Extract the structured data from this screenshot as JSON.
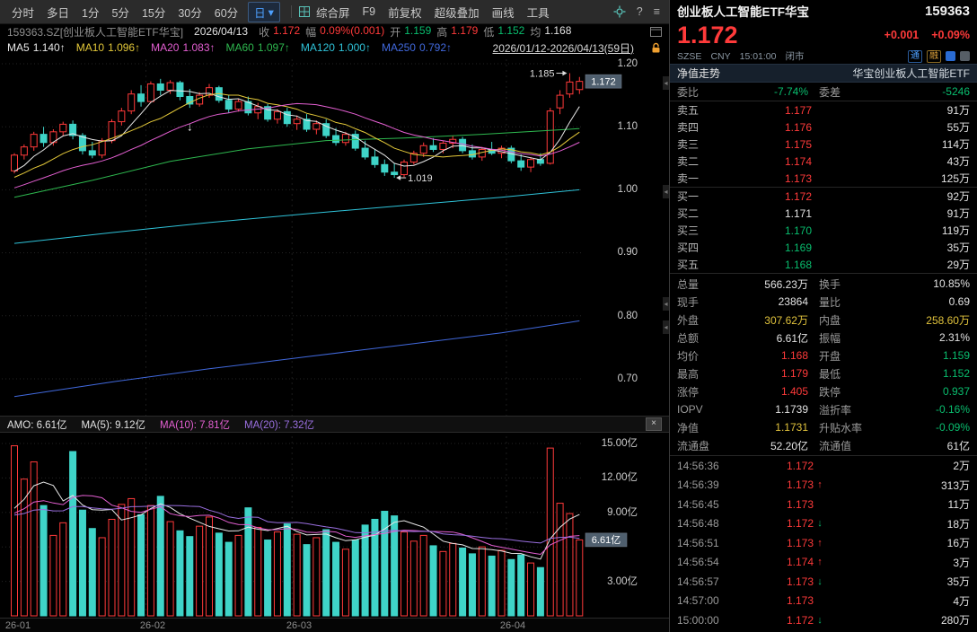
{
  "colors": {
    "up": "#ff3a3a",
    "down": "#09bd6e",
    "candle_down": "#3fd4c8",
    "yellow": "#e0c23c",
    "white": "#e2e2e2",
    "dim": "#9a9a9a",
    "magenta": "#e45fd2",
    "purple": "#9a6fe0",
    "badge_bg": "#4f5f6e",
    "accent_blue": "#4da0ff",
    "orange": "#f0a030"
  },
  "icons": {
    "close": "×",
    "caret": "▾",
    "help": "?",
    "burger": "≡",
    "collapse": "◂"
  },
  "toolbar": {
    "periods": [
      {
        "label": "分时"
      },
      {
        "label": "多日"
      },
      {
        "label": "1分"
      },
      {
        "label": "5分"
      },
      {
        "label": "15分"
      },
      {
        "label": "30分"
      },
      {
        "label": "60分"
      }
    ],
    "active_period": "日",
    "menus": [
      {
        "label": "综合屏"
      },
      {
        "label": "F9"
      },
      {
        "label": "前复权"
      },
      {
        "label": "超级叠加"
      },
      {
        "label": "画线"
      },
      {
        "label": "工具"
      }
    ]
  },
  "info_bar": {
    "code_name": "159363.SZ[创业板人工智能ETF华宝]",
    "date": "2026/04/13",
    "fields": [
      {
        "label": "收",
        "value": "1.172",
        "color": "up"
      },
      {
        "label": "幅",
        "value": "0.09%(0.001)",
        "color": "up"
      },
      {
        "label": "开",
        "value": "1.159",
        "color": "down"
      },
      {
        "label": "高",
        "value": "1.179",
        "color": "up"
      },
      {
        "label": "低",
        "value": "1.152",
        "color": "down"
      },
      {
        "label": "均",
        "value": "1.168",
        "color": "white"
      }
    ]
  },
  "ma_bar": {
    "items": [
      {
        "label": "MA5",
        "value": "1.140↑",
        "color": "#e8e8e8"
      },
      {
        "label": "MA10",
        "value": "1.096↑",
        "color": "#e3c839"
      },
      {
        "label": "MA20",
        "value": "1.083↑",
        "color": "#e45fd2"
      },
      {
        "label": "MA60",
        "value": "1.097↑",
        "color": "#2eb84f"
      },
      {
        "label": "MA120",
        "value": "1.000↑",
        "color": "#2fc3d9"
      },
      {
        "label": "MA250",
        "value": "0.792↑",
        "color": "#4169dd"
      }
    ],
    "range": "2026/01/12-2026/04/13(59日)"
  },
  "amo_bar": {
    "amo_label": "AMO: 6.61亿",
    "ma5_label": "MA(5): 9.12亿",
    "ma10_label": "MA(10): 7.81亿",
    "ma20_label": "MA(20): 7.32亿"
  },
  "chart_data": [
    {
      "type": "candlestick",
      "symbol": "159363.SZ",
      "period": "日K",
      "y_ticks": [
        "1.20",
        "1.10",
        "1.00",
        "0.90",
        "0.80",
        "0.70"
      ],
      "y_tick_values": [
        1.2,
        1.1,
        1.0,
        0.9,
        0.8,
        0.7
      ],
      "ylim": [
        0.645,
        1.213
      ],
      "x_labels": [
        {
          "label": "26-01",
          "day": 0
        },
        {
          "label": "26-02",
          "day": 14
        },
        {
          "label": "26-03",
          "day": 29
        },
        {
          "label": "26-04",
          "day": 51
        }
      ],
      "last_price": 1.172,
      "last_price_label": "1.172",
      "annotations": [
        {
          "text": "1.185",
          "day": 57,
          "price": 1.185,
          "side": "left"
        },
        {
          "text": "1.019",
          "day": 39,
          "price": 1.019,
          "side": "right"
        },
        {
          "text": "↓",
          "day": 18,
          "price": 1.094,
          "side": "marker"
        }
      ],
      "overlays": [
        {
          "name": "MA5",
          "period": 5,
          "color": "#e8e8e8"
        },
        {
          "name": "MA10",
          "period": 10,
          "color": "#e3c839"
        },
        {
          "name": "MA20",
          "period": 20,
          "color": "#e45fd2"
        }
      ],
      "trend_lines": [
        {
          "name": "MA60",
          "color": "#2eb84f",
          "points": [
            [
              0,
              0.988
            ],
            [
              8,
              1.015
            ],
            [
              16,
              1.045
            ],
            [
              24,
              1.065
            ],
            [
              32,
              1.078
            ],
            [
              40,
              1.082
            ],
            [
              48,
              1.088
            ],
            [
              58,
              1.097
            ]
          ]
        },
        {
          "name": "MA120",
          "color": "#2fc3d9",
          "points": [
            [
              0,
              0.915
            ],
            [
              10,
              0.932
            ],
            [
              20,
              0.948
            ],
            [
              30,
              0.962
            ],
            [
              40,
              0.975
            ],
            [
              50,
              0.988
            ],
            [
              58,
              1.0
            ]
          ]
        },
        {
          "name": "MA250",
          "color": "#4169dd",
          "points": [
            [
              0,
              0.672
            ],
            [
              10,
              0.695
            ],
            [
              20,
              0.716
            ],
            [
              30,
              0.735
            ],
            [
              40,
              0.754
            ],
            [
              50,
              0.773
            ],
            [
              58,
              0.792
            ]
          ]
        }
      ],
      "seed_closes": [
        0.962,
        0.968,
        0.975,
        0.97,
        0.98,
        0.988,
        0.992,
        0.985,
        0.995,
        1.002,
        1.008,
        1.0,
        1.01,
        1.015,
        1.008,
        1.018,
        1.022,
        1.015,
        1.025,
        1.03
      ],
      "candles": [
        [
          1.03,
          1.058,
          1.026,
          1.055
        ],
        [
          1.055,
          1.072,
          1.048,
          1.068
        ],
        [
          1.068,
          1.092,
          1.062,
          1.088
        ],
        [
          1.088,
          1.1,
          1.068,
          1.075
        ],
        [
          1.075,
          1.096,
          1.07,
          1.092
        ],
        [
          1.092,
          1.108,
          1.086,
          1.104
        ],
        [
          1.104,
          1.11,
          1.08,
          1.086
        ],
        [
          1.086,
          1.09,
          1.056,
          1.062
        ],
        [
          1.062,
          1.076,
          1.05,
          1.055
        ],
        [
          1.055,
          1.082,
          1.05,
          1.078
        ],
        [
          1.078,
          1.112,
          1.074,
          1.108
        ],
        [
          1.108,
          1.13,
          1.102,
          1.125
        ],
        [
          1.125,
          1.158,
          1.12,
          1.152
        ],
        [
          1.152,
          1.166,
          1.132,
          1.14
        ],
        [
          1.14,
          1.172,
          1.138,
          1.168
        ],
        [
          1.168,
          1.176,
          1.15,
          1.158
        ],
        [
          1.158,
          1.174,
          1.152,
          1.17
        ],
        [
          1.17,
          1.173,
          1.142,
          1.148
        ],
        [
          1.148,
          1.16,
          1.13,
          1.136
        ],
        [
          1.136,
          1.155,
          1.132,
          1.15
        ],
        [
          1.15,
          1.168,
          1.146,
          1.162
        ],
        [
          1.162,
          1.165,
          1.138,
          1.142
        ],
        [
          1.142,
          1.15,
          1.122,
          1.128
        ],
        [
          1.128,
          1.145,
          1.124,
          1.14
        ],
        [
          1.14,
          1.148,
          1.118,
          1.122
        ],
        [
          1.122,
          1.138,
          1.112,
          1.132
        ],
        [
          1.132,
          1.136,
          1.108,
          1.112
        ],
        [
          1.112,
          1.128,
          1.105,
          1.124
        ],
        [
          1.124,
          1.13,
          1.1,
          1.105
        ],
        [
          1.105,
          1.118,
          1.095,
          1.112
        ],
        [
          1.112,
          1.12,
          1.092,
          1.096
        ],
        [
          1.096,
          1.11,
          1.088,
          1.105
        ],
        [
          1.105,
          1.112,
          1.082,
          1.086
        ],
        [
          1.086,
          1.098,
          1.07,
          1.075
        ],
        [
          1.075,
          1.092,
          1.07,
          1.088
        ],
        [
          1.088,
          1.094,
          1.062,
          1.066
        ],
        [
          1.066,
          1.078,
          1.048,
          1.052
        ],
        [
          1.052,
          1.064,
          1.035,
          1.04
        ],
        [
          1.04,
          1.048,
          1.022,
          1.028
        ],
        [
          1.028,
          1.042,
          1.019,
          1.024
        ],
        [
          1.024,
          1.048,
          1.02,
          1.044
        ],
        [
          1.044,
          1.062,
          1.04,
          1.058
        ],
        [
          1.058,
          1.075,
          1.052,
          1.07
        ],
        [
          1.07,
          1.082,
          1.06,
          1.064
        ],
        [
          1.064,
          1.078,
          1.058,
          1.074
        ],
        [
          1.074,
          1.086,
          1.066,
          1.08
        ],
        [
          1.08,
          1.084,
          1.058,
          1.062
        ],
        [
          1.062,
          1.072,
          1.048,
          1.052
        ],
        [
          1.052,
          1.068,
          1.046,
          1.064
        ],
        [
          1.064,
          1.076,
          1.055,
          1.058
        ],
        [
          1.058,
          1.07,
          1.05,
          1.066
        ],
        [
          1.066,
          1.07,
          1.042,
          1.046
        ],
        [
          1.046,
          1.056,
          1.03,
          1.036
        ],
        [
          1.036,
          1.052,
          1.028,
          1.048
        ],
        [
          1.048,
          1.058,
          1.038,
          1.042
        ],
        [
          1.042,
          1.13,
          1.04,
          1.125
        ],
        [
          1.13,
          1.158,
          1.12,
          1.15
        ],
        [
          1.152,
          1.185,
          1.146,
          1.171
        ],
        [
          1.159,
          1.179,
          1.152,
          1.172
        ]
      ]
    },
    {
      "type": "bar",
      "name": "AMO",
      "unit": "亿",
      "y_ticks": [
        "15.00亿",
        "12.00亿",
        "9.00亿",
        "3.00亿"
      ],
      "y_tick_values": [
        15,
        12,
        9,
        3
      ],
      "grid_values": [
        15,
        12,
        9,
        6,
        3
      ],
      "ylim": [
        0,
        15.7
      ],
      "last_value": 6.61,
      "last_value_label": "6.61亿",
      "overlays": [
        {
          "name": "MA5",
          "period": 5,
          "color": "#e8e8e8"
        },
        {
          "name": "MA10",
          "period": 10,
          "color": "#e45fd2"
        },
        {
          "name": "MA20",
          "period": 20,
          "color": "#9a6fe0"
        }
      ],
      "seed_values": [
        8.0,
        9.0,
        7.5,
        8.5,
        9.5,
        8.0,
        7.0,
        9.0,
        10.0,
        8.5,
        9.0,
        8.0,
        7.5,
        8.5,
        9.0,
        9.5,
        8.0,
        7.5,
        8.0,
        8.5
      ],
      "values": [
        14.8,
        11.9,
        13.4,
        9.6,
        7.0,
        8.1,
        14.3,
        9.2,
        7.6,
        6.8,
        8.4,
        9.7,
        10.2,
        8.8,
        9.6,
        10.4,
        8.2,
        7.4,
        6.9,
        7.8,
        8.6,
        7.2,
        6.4,
        7.0,
        9.4,
        7.7,
        6.6,
        7.3,
        8.0,
        7.1,
        6.2,
        6.8,
        7.5,
        6.4,
        5.8,
        6.6,
        7.9,
        8.4,
        9.1,
        8.7,
        7.3,
        6.5,
        7.0,
        6.1,
        5.6,
        6.3,
        5.9,
        5.4,
        6.0,
        5.2,
        5.7,
        4.9,
        5.3,
        4.6,
        4.2,
        14.6,
        9.8,
        8.9,
        6.61
      ]
    }
  ],
  "quote_panel": {
    "name": "创业板人工智能ETF华宝",
    "code": "159363",
    "price": "1.172",
    "change": "+0.001",
    "change_pct": "+0.09%",
    "exchange": "SZSE",
    "currency": "CNY",
    "time": "15:01:00",
    "status": "闭市",
    "badge1": "通",
    "badge2": "融",
    "subtab_left": "净值走势",
    "subtab_right": "华宝创业板人工智能ETF",
    "weibi_label": "委比",
    "weibi_value": "-7.74%",
    "weicha_label": "委差",
    "weicha_value": "-5246",
    "asks": [
      {
        "label": "卖五",
        "price": "1.177",
        "pc": "up",
        "vol": "91万"
      },
      {
        "label": "卖四",
        "price": "1.176",
        "pc": "up",
        "vol": "55万"
      },
      {
        "label": "卖三",
        "price": "1.175",
        "pc": "up",
        "vol": "114万"
      },
      {
        "label": "卖二",
        "price": "1.174",
        "pc": "up",
        "vol": "43万"
      },
      {
        "label": "卖一",
        "price": "1.173",
        "pc": "up",
        "vol": "125万"
      }
    ],
    "bids": [
      {
        "label": "买一",
        "price": "1.172",
        "pc": "up",
        "vol": "92万"
      },
      {
        "label": "买二",
        "price": "1.171",
        "pc": "white",
        "vol": "91万"
      },
      {
        "label": "买三",
        "price": "1.170",
        "pc": "down",
        "vol": "119万"
      },
      {
        "label": "买四",
        "price": "1.169",
        "pc": "down",
        "vol": "35万"
      },
      {
        "label": "买五",
        "price": "1.168",
        "pc": "down",
        "vol": "29万"
      }
    ],
    "stats": [
      {
        "l1": "总量",
        "v1": "566.23万",
        "c1": "white",
        "l2": "换手",
        "v2": "10.85%",
        "c2": "white"
      },
      {
        "l1": "现手",
        "v1": "23864",
        "c1": "white",
        "l2": "量比",
        "v2": "0.69",
        "c2": "white"
      },
      {
        "l1": "外盘",
        "v1": "307.62万",
        "c1": "yellow",
        "l2": "内盘",
        "v2": "258.60万",
        "c2": "yellow"
      },
      {
        "l1": "总额",
        "v1": "6.61亿",
        "c1": "white",
        "l2": "振幅",
        "v2": "2.31%",
        "c2": "white"
      },
      {
        "l1": "均价",
        "v1": "1.168",
        "c1": "up",
        "l2": "开盘",
        "v2": "1.159",
        "c2": "down"
      },
      {
        "l1": "最高",
        "v1": "1.179",
        "c1": "up",
        "l2": "最低",
        "v2": "1.152",
        "c2": "down"
      },
      {
        "l1": "涨停",
        "v1": "1.405",
        "c1": "up",
        "l2": "跌停",
        "v2": "0.937",
        "c2": "down"
      },
      {
        "l1": "IOPV",
        "v1": "1.1739",
        "c1": "white",
        "l2": "溢折率",
        "v2": "-0.16%",
        "c2": "down"
      },
      {
        "l1": "净值",
        "v1": "1.1731",
        "c1": "yellow",
        "l2": "升贴水率",
        "v2": "-0.09%",
        "c2": "down"
      },
      {
        "l1": "流通盘",
        "v1": "52.20亿",
        "c1": "white",
        "l2": "流通值",
        "v2": "61亿",
        "c2": "white"
      }
    ],
    "ticks": [
      {
        "time": "14:56:36",
        "price": "1.172",
        "pc": "up",
        "arrow": "",
        "ac": "white",
        "vol": "2万"
      },
      {
        "time": "14:56:39",
        "price": "1.173",
        "pc": "up",
        "arrow": "↑",
        "ac": "up",
        "vol": "313万"
      },
      {
        "time": "14:56:45",
        "price": "1.173",
        "pc": "up",
        "arrow": "",
        "ac": "white",
        "vol": "11万"
      },
      {
        "time": "14:56:48",
        "price": "1.172",
        "pc": "up",
        "arrow": "↓",
        "ac": "down",
        "vol": "18万"
      },
      {
        "time": "14:56:51",
        "price": "1.173",
        "pc": "up",
        "arrow": "↑",
        "ac": "up",
        "vol": "16万"
      },
      {
        "time": "14:56:54",
        "price": "1.174",
        "pc": "up",
        "arrow": "↑",
        "ac": "up",
        "vol": "3万"
      },
      {
        "time": "14:56:57",
        "price": "1.173",
        "pc": "up",
        "arrow": "↓",
        "ac": "down",
        "vol": "35万"
      },
      {
        "time": "14:57:00",
        "price": "1.173",
        "pc": "up",
        "arrow": "",
        "ac": "white",
        "vol": "4万"
      },
      {
        "time": "15:00:00",
        "price": "1.172",
        "pc": "up",
        "arrow": "↓",
        "ac": "down",
        "vol": "280万"
      }
    ]
  }
}
